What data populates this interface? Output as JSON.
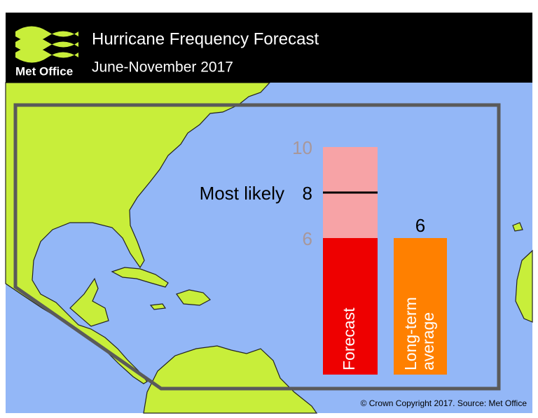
{
  "header": {
    "logo": "Met Office",
    "title": "Hurricane Frequency Forecast",
    "subtitle": "June-November 2017"
  },
  "chart_data": {
    "type": "range_bar",
    "ylim": [
      0,
      10
    ],
    "forecast": {
      "label": "Forecast",
      "range": [
        6,
        10
      ],
      "most_likely": 8,
      "most_likely_label": "Most likely",
      "color": "#ee0000",
      "range_color": "#f7a3a6",
      "range_label_color": "#a8979a"
    },
    "average": {
      "label_lines": [
        "Long-term",
        "average"
      ],
      "value": 6,
      "color": "#ff8000"
    }
  },
  "footer": {
    "credit": "© Crown Copyright 2017. Source: Met Office"
  }
}
